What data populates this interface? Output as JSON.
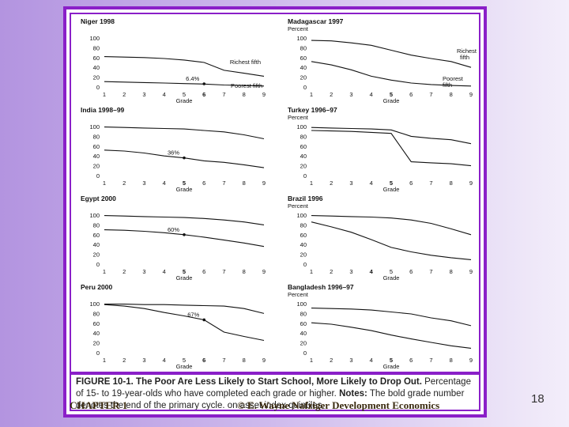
{
  "figure": {
    "caption_title": "FIGURE 10-1. The Poor Are Less Likely to Start School, More Likely to Drop Out.",
    "caption_line2": "Percentage of 15- to 19-year-olds who have completed each grade or higher.",
    "caption_notes_label": "Notes:",
    "caption_notes": "The bold grade number denotes the end of the primary cycle.",
    "caption_line4": "on asset index quintiles."
  },
  "footer": {
    "chapter": "CHAPTER 1",
    "copyright": "© E. Wayne Nafziger Development Economics",
    "page_number": "18"
  },
  "colors": {
    "frame": "#8a1fc8",
    "line": "#111111",
    "background_left": "#b394e0",
    "background_right": "#f3eefa"
  },
  "chart_data": [
    {
      "type": "line",
      "title": "Niger 1998",
      "ylabel": "",
      "xlabel": "Grade",
      "x": [
        1,
        2,
        3,
        4,
        5,
        6,
        7,
        8,
        9
      ],
      "bold_grade": 6,
      "ylim": [
        0,
        100
      ],
      "yticks": [
        0,
        20,
        40,
        60,
        80,
        100
      ],
      "series": [
        {
          "name": "Richest fifth",
          "values": [
            62,
            61,
            60,
            58,
            55,
            50,
            34,
            28,
            22
          ]
        },
        {
          "name": "Poorest fifth",
          "values": [
            11,
            10,
            9,
            8,
            7,
            6,
            4,
            3,
            2
          ]
        }
      ],
      "annotations": [
        {
          "text": "6.4%",
          "x": 6,
          "y": 6.4
        }
      ]
    },
    {
      "type": "line",
      "title": "Madagascar 1997",
      "ylabel": "Percent",
      "xlabel": "Grade",
      "x": [
        1,
        2,
        3,
        4,
        5,
        6,
        7,
        8,
        9
      ],
      "bold_grade": 5,
      "ylim": [
        0,
        100
      ],
      "yticks": [
        0,
        20,
        40,
        60,
        80,
        100
      ],
      "series": [
        {
          "name": "Richest fifth",
          "values": [
            95,
            94,
            90,
            85,
            75,
            65,
            58,
            52,
            40
          ]
        },
        {
          "name": "Poorest fifth",
          "values": [
            52,
            45,
            35,
            22,
            14,
            8,
            5,
            3,
            2
          ]
        }
      ],
      "annotations": []
    },
    {
      "type": "line",
      "title": "India 1998–99",
      "ylabel": "",
      "xlabel": "Grade",
      "x": [
        1,
        2,
        3,
        4,
        5,
        6,
        7,
        8,
        9
      ],
      "bold_grade": 5,
      "ylim": [
        0,
        100
      ],
      "yticks": [
        0,
        20,
        40,
        60,
        80,
        100
      ],
      "series": [
        {
          "name": "Richest fifth",
          "values": [
            99,
            98,
            97,
            96,
            95,
            92,
            89,
            83,
            75
          ]
        },
        {
          "name": "Poorest fifth",
          "values": [
            52,
            50,
            46,
            40,
            36,
            30,
            27,
            22,
            16
          ]
        }
      ],
      "annotations": [
        {
          "text": "36%",
          "x": 5,
          "y": 36
        }
      ]
    },
    {
      "type": "line",
      "title": "Turkey 1996–97",
      "ylabel": "Percent",
      "xlabel": "Grade",
      "x": [
        1,
        2,
        3,
        4,
        5,
        6,
        7,
        8,
        9
      ],
      "bold_grade": 5,
      "ylim": [
        0,
        100
      ],
      "yticks": [
        0,
        20,
        40,
        60,
        80,
        100
      ],
      "series": [
        {
          "name": "Richest fifth",
          "values": [
            98,
            97,
            96,
            95,
            93,
            80,
            76,
            73,
            65
          ]
        },
        {
          "name": "Poorest fifth",
          "values": [
            92,
            91,
            90,
            88,
            86,
            28,
            26,
            24,
            20
          ]
        }
      ],
      "annotations": []
    },
    {
      "type": "line",
      "title": "Egypt 2000",
      "ylabel": "",
      "xlabel": "Grade",
      "x": [
        1,
        2,
        3,
        4,
        5,
        6,
        7,
        8,
        9
      ],
      "bold_grade": 5,
      "ylim": [
        0,
        100
      ],
      "yticks": [
        0,
        20,
        40,
        60,
        80,
        100
      ],
      "series": [
        {
          "name": "Richest fifth",
          "values": [
            99,
            98,
            97,
            96,
            95,
            93,
            90,
            86,
            80
          ]
        },
        {
          "name": "Poorest fifth",
          "values": [
            70,
            69,
            67,
            64,
            60,
            55,
            49,
            43,
            36
          ]
        }
      ],
      "annotations": [
        {
          "text": "60%",
          "x": 5,
          "y": 60
        }
      ]
    },
    {
      "type": "line",
      "title": "Brazil 1996",
      "ylabel": "Percent",
      "xlabel": "Grade",
      "x": [
        1,
        2,
        3,
        4,
        5,
        6,
        7,
        8,
        9
      ],
      "bold_grade": 4,
      "ylim": [
        0,
        100
      ],
      "yticks": [
        0,
        20,
        40,
        60,
        80,
        100
      ],
      "series": [
        {
          "name": "Richest fifth",
          "values": [
            99,
            98,
            97,
            96,
            94,
            90,
            83,
            72,
            60
          ]
        },
        {
          "name": "Poorest fifth",
          "values": [
            86,
            76,
            65,
            50,
            34,
            25,
            18,
            13,
            9
          ]
        }
      ],
      "annotations": []
    },
    {
      "type": "line",
      "title": "Peru 2000",
      "ylabel": "",
      "xlabel": "Grade",
      "x": [
        1,
        2,
        3,
        4,
        5,
        6,
        7,
        8,
        9
      ],
      "bold_grade": 6,
      "ylim": [
        0,
        100
      ],
      "yticks": [
        0,
        20,
        40,
        60,
        80,
        100
      ],
      "series": [
        {
          "name": "Richest fifth",
          "values": [
            99,
            99,
            98,
            98,
            97,
            96,
            95,
            90,
            80
          ]
        },
        {
          "name": "Poorest fifth",
          "values": [
            98,
            95,
            90,
            82,
            75,
            67,
            42,
            33,
            25
          ]
        }
      ],
      "annotations": [
        {
          "text": "67%",
          "x": 6,
          "y": 67
        }
      ]
    },
    {
      "type": "line",
      "title": "Bangladesh 1996–97",
      "ylabel": "Percent",
      "xlabel": "Grade",
      "x": [
        1,
        2,
        3,
        4,
        5,
        6,
        7,
        8,
        9
      ],
      "bold_grade": 5,
      "ylim": [
        0,
        100
      ],
      "yticks": [
        0,
        20,
        40,
        60,
        80,
        100
      ],
      "series": [
        {
          "name": "Richest fifth",
          "values": [
            91,
            90,
            89,
            87,
            83,
            79,
            71,
            65,
            55
          ]
        },
        {
          "name": "Poorest fifth",
          "values": [
            61,
            58,
            52,
            45,
            36,
            28,
            21,
            14,
            9
          ]
        }
      ],
      "annotations": []
    }
  ]
}
